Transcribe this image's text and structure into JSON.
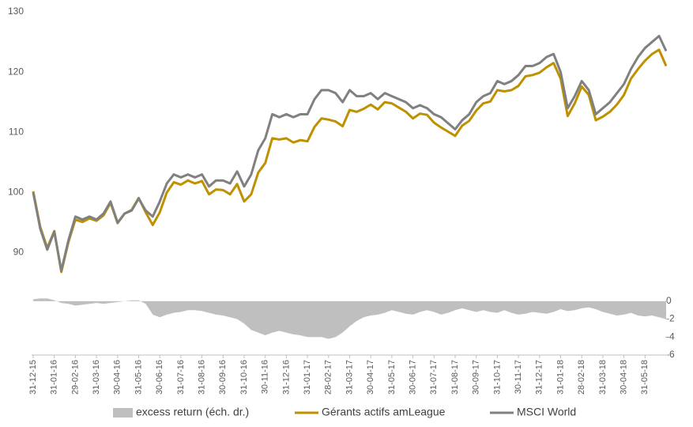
{
  "chart_data": {
    "type": "line",
    "categories": [
      "31-12-15",
      null,
      null,
      "31-01-16",
      null,
      null,
      "29-02-16",
      null,
      null,
      "31-03-16",
      null,
      null,
      "30-04-16",
      null,
      null,
      "31-05-16",
      null,
      null,
      "30-06-16",
      null,
      null,
      "31-07-16",
      null,
      null,
      "31-08-16",
      null,
      null,
      "30-09-16",
      null,
      null,
      "31-10-16",
      null,
      null,
      "30-11-16",
      null,
      null,
      "31-12-16",
      null,
      null,
      "31-01-17",
      null,
      null,
      "28-02-17",
      null,
      null,
      "31-03-17",
      null,
      null,
      "30-04-17",
      null,
      null,
      "31-05-17",
      null,
      null,
      "30-06-17",
      null,
      null,
      "31-07-17",
      null,
      null,
      "31-08-17",
      null,
      null,
      "30-09-17",
      null,
      null,
      "31-10-17",
      null,
      null,
      "30-11-17",
      null,
      null,
      "31-12-17",
      null,
      null,
      "31-01-18",
      null,
      null,
      "28-02-18",
      null,
      null,
      "31-03-18",
      null,
      null,
      "30-04-18",
      null,
      null,
      "31-05-18",
      null,
      null,
      null
    ],
    "series": [
      {
        "name": "excess return (éch. dr.)",
        "type": "area",
        "axis": "y2",
        "color": "#bfbfbf",
        "values": [
          0.2,
          0.3,
          0.3,
          0.1,
          -0.2,
          -0.3,
          -0.5,
          -0.4,
          -0.3,
          -0.2,
          -0.3,
          -0.2,
          -0.1,
          0,
          0.1,
          0.1,
          -0.3,
          -1.5,
          -1.8,
          -1.5,
          -1.3,
          -1.2,
          -1.0,
          -1.0,
          -1.1,
          -1.3,
          -1.5,
          -1.6,
          -1.8,
          -2.0,
          -2.5,
          -3.2,
          -3.5,
          -3.8,
          -3.5,
          -3.3,
          -3.5,
          -3.7,
          -3.8,
          -4.0,
          -4.0,
          -4.0,
          -4.2,
          -4.0,
          -3.5,
          -2.8,
          -2.2,
          -1.8,
          -1.6,
          -1.5,
          -1.3,
          -1.0,
          -1.2,
          -1.4,
          -1.5,
          -1.2,
          -1.0,
          -1.2,
          -1.5,
          -1.3,
          -1.0,
          -0.8,
          -1.0,
          -1.2,
          -1.0,
          -1.2,
          -1.3,
          -1.0,
          -1.3,
          -1.5,
          -1.4,
          -1.2,
          -1.3,
          -1.4,
          -1.2,
          -0.9,
          -1.1,
          -1.0,
          -0.8,
          -0.7,
          -0.9,
          -1.2,
          -1.4,
          -1.6,
          -1.5,
          -1.3,
          -1.6,
          -1.7,
          -1.6,
          -1.8,
          -2.0
        ]
      },
      {
        "name": "Gérants actifs amLeague",
        "color": "#bf9000",
        "values": [
          100.2,
          94.3,
          90.8,
          93.6,
          86.8,
          91.7,
          95.5,
          95.1,
          95.7,
          95.3,
          96.2,
          98.3,
          94.9,
          96.5,
          97.1,
          99.1,
          96.7,
          94.6,
          96.7,
          100,
          101.7,
          101.3,
          102,
          101.5,
          101.9,
          99.7,
          100.5,
          100.4,
          99.7,
          101.4,
          98.5,
          99.7,
          103.3,
          104.9,
          109,
          108.8,
          109,
          108.3,
          108.7,
          108.5,
          110.9,
          112.3,
          112.1,
          111.8,
          111,
          113.7,
          113.4,
          113.9,
          114.6,
          113.8,
          115,
          114.8,
          114.1,
          113.4,
          112.3,
          113.1,
          112.9,
          111.6,
          110.8,
          110.1,
          109.4,
          111.1,
          111.9,
          113.6,
          114.8,
          115.1,
          117,
          116.8,
          117,
          117.7,
          119.3,
          119.5,
          119.9,
          120.8,
          121.5,
          118.9,
          112.7,
          114.8,
          117.6,
          116.2,
          112,
          112.6,
          113.4,
          114.6,
          116.2,
          118.9,
          120.5,
          121.9,
          123,
          123.7,
          121
        ]
      },
      {
        "name": "MSCI World",
        "color": "#808080",
        "values": [
          100,
          94,
          90.5,
          93.5,
          87,
          92,
          96,
          95.5,
          96,
          95.5,
          96.5,
          98.5,
          95,
          96.5,
          97,
          99,
          97,
          96,
          98.5,
          101.5,
          103,
          102.5,
          103,
          102.5,
          103,
          101,
          102,
          102,
          101.5,
          103.5,
          101,
          103,
          107,
          109,
          113,
          112.5,
          113,
          112.5,
          113,
          113,
          115.5,
          117,
          117,
          116.5,
          115,
          117,
          116,
          116,
          116.5,
          115.5,
          116.5,
          116,
          115.5,
          115,
          114,
          114.5,
          114,
          113,
          112.5,
          111.5,
          110.5,
          112,
          113,
          115,
          116,
          116.5,
          118.5,
          118,
          118.5,
          119.5,
          121,
          121,
          121.5,
          122.5,
          123,
          120,
          114,
          116,
          118.5,
          117,
          113,
          114,
          115,
          116.5,
          118,
          120.5,
          122.5,
          124,
          125,
          126,
          123.5
        ]
      }
    ],
    "ylim": [
      73,
      130
    ],
    "yticks": [
      90,
      100,
      110,
      120,
      130
    ],
    "y2lim": [
      -6,
      32.2
    ],
    "y2ticks": [
      0,
      -2,
      -4,
      -6
    ],
    "grid": false,
    "legend": "bottom"
  }
}
